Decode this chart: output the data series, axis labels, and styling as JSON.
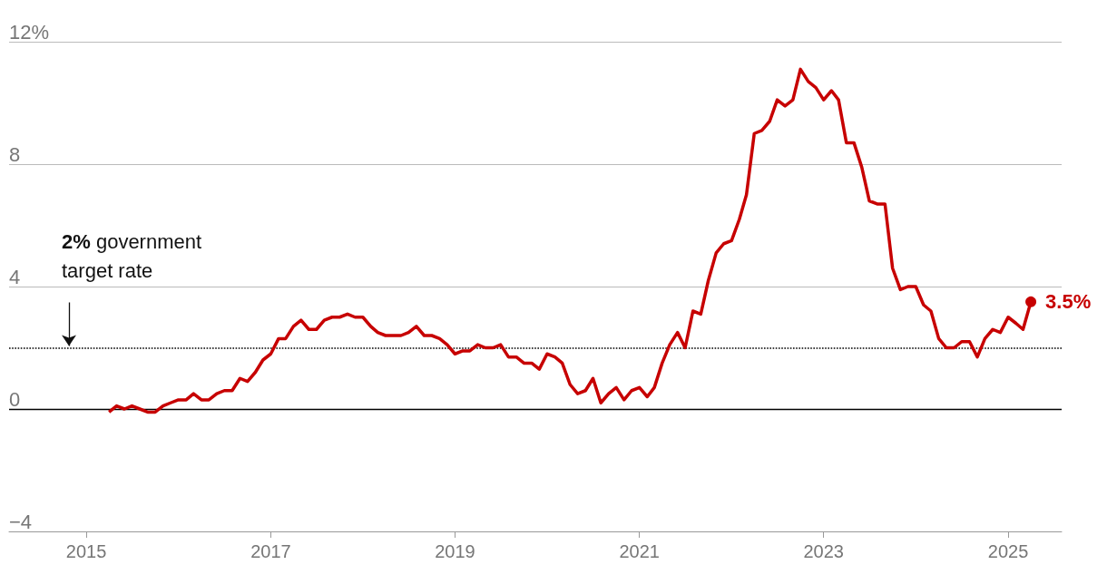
{
  "chart_data": {
    "type": "line",
    "x": [
      "2015-04",
      "2015-05",
      "2015-06",
      "2015-07",
      "2015-08",
      "2015-09",
      "2015-10",
      "2015-11",
      "2015-12",
      "2016-01",
      "2016-02",
      "2016-03",
      "2016-04",
      "2016-05",
      "2016-06",
      "2016-07",
      "2016-08",
      "2016-09",
      "2016-10",
      "2016-11",
      "2016-12",
      "2017-01",
      "2017-02",
      "2017-03",
      "2017-04",
      "2017-05",
      "2017-06",
      "2017-07",
      "2017-08",
      "2017-09",
      "2017-10",
      "2017-11",
      "2017-12",
      "2018-01",
      "2018-02",
      "2018-03",
      "2018-04",
      "2018-05",
      "2018-06",
      "2018-07",
      "2018-08",
      "2018-09",
      "2018-10",
      "2018-11",
      "2018-12",
      "2019-01",
      "2019-02",
      "2019-03",
      "2019-04",
      "2019-05",
      "2019-06",
      "2019-07",
      "2019-08",
      "2019-09",
      "2019-10",
      "2019-11",
      "2019-12",
      "2020-01",
      "2020-02",
      "2020-03",
      "2020-04",
      "2020-05",
      "2020-06",
      "2020-07",
      "2020-08",
      "2020-09",
      "2020-10",
      "2020-11",
      "2020-12",
      "2021-01",
      "2021-02",
      "2021-03",
      "2021-04",
      "2021-05",
      "2021-06",
      "2021-07",
      "2021-08",
      "2021-09",
      "2021-10",
      "2021-11",
      "2021-12",
      "2022-01",
      "2022-02",
      "2022-03",
      "2022-04",
      "2022-05",
      "2022-06",
      "2022-07",
      "2022-08",
      "2022-09",
      "2022-10",
      "2022-11",
      "2022-12",
      "2023-01",
      "2023-02",
      "2023-03",
      "2023-04",
      "2023-05",
      "2023-06",
      "2023-07",
      "2023-08",
      "2023-09",
      "2023-10",
      "2023-11",
      "2023-12",
      "2024-01",
      "2024-02",
      "2024-03",
      "2024-04",
      "2024-05",
      "2024-06",
      "2024-07",
      "2024-08",
      "2024-09",
      "2024-10",
      "2024-11",
      "2024-12",
      "2025-01",
      "2025-02",
      "2025-03",
      "2025-04"
    ],
    "values": [
      -0.1,
      0.1,
      0.0,
      0.1,
      0.0,
      -0.1,
      -0.1,
      0.1,
      0.2,
      0.3,
      0.3,
      0.5,
      0.3,
      0.3,
      0.5,
      0.6,
      0.6,
      1.0,
      0.9,
      1.2,
      1.6,
      1.8,
      2.3,
      2.3,
      2.7,
      2.9,
      2.6,
      2.6,
      2.9,
      3.0,
      3.0,
      3.1,
      3.0,
      3.0,
      2.7,
      2.5,
      2.4,
      2.4,
      2.4,
      2.5,
      2.7,
      2.4,
      2.4,
      2.3,
      2.1,
      1.8,
      1.9,
      1.9,
      2.1,
      2.0,
      2.0,
      2.1,
      1.7,
      1.7,
      1.5,
      1.5,
      1.3,
      1.8,
      1.7,
      1.5,
      0.8,
      0.5,
      0.6,
      1.0,
      0.2,
      0.5,
      0.7,
      0.3,
      0.6,
      0.7,
      0.4,
      0.7,
      1.5,
      2.1,
      2.5,
      2.0,
      3.2,
      3.1,
      4.2,
      5.1,
      5.4,
      5.5,
      6.2,
      7.0,
      9.0,
      9.1,
      9.4,
      10.1,
      9.9,
      10.1,
      11.1,
      10.7,
      10.5,
      10.1,
      10.4,
      10.1,
      8.7,
      8.7,
      7.9,
      6.8,
      6.7,
      6.7,
      4.6,
      3.9,
      4.0,
      4.0,
      3.4,
      3.2,
      2.3,
      2.0,
      2.0,
      2.2,
      2.2,
      1.7,
      2.3,
      2.6,
      2.5,
      3.0,
      2.8,
      2.6,
      3.5
    ],
    "color": "#c70000",
    "xlim": [
      "2014-03",
      "2025-08"
    ],
    "xticks": [
      {
        "value": "2015",
        "label": "2015"
      },
      {
        "value": "2017",
        "label": "2017"
      },
      {
        "value": "2019",
        "label": "2019"
      },
      {
        "value": "2021",
        "label": "2021"
      },
      {
        "value": "2023",
        "label": "2023"
      },
      {
        "value": "2025",
        "label": "2025"
      }
    ],
    "ylim": [
      -4,
      12
    ],
    "yticks": [
      {
        "value": -4,
        "label": "−4"
      },
      0,
      4,
      8,
      {
        "value": 12,
        "label": "12%"
      }
    ],
    "grid": "y",
    "marker": "none",
    "line_style": "solid",
    "ref_lines": [
      {
        "axis": "y",
        "value": 0,
        "color": "#000000",
        "line_style": "solid"
      },
      {
        "axis": "y",
        "value": 2,
        "label": "2% government target rate",
        "color": "#000000",
        "line_style": "dotted"
      }
    ],
    "annotations": [
      {
        "text": "3.5%",
        "x": "2025-04",
        "y": 3.5
      }
    ]
  }
}
